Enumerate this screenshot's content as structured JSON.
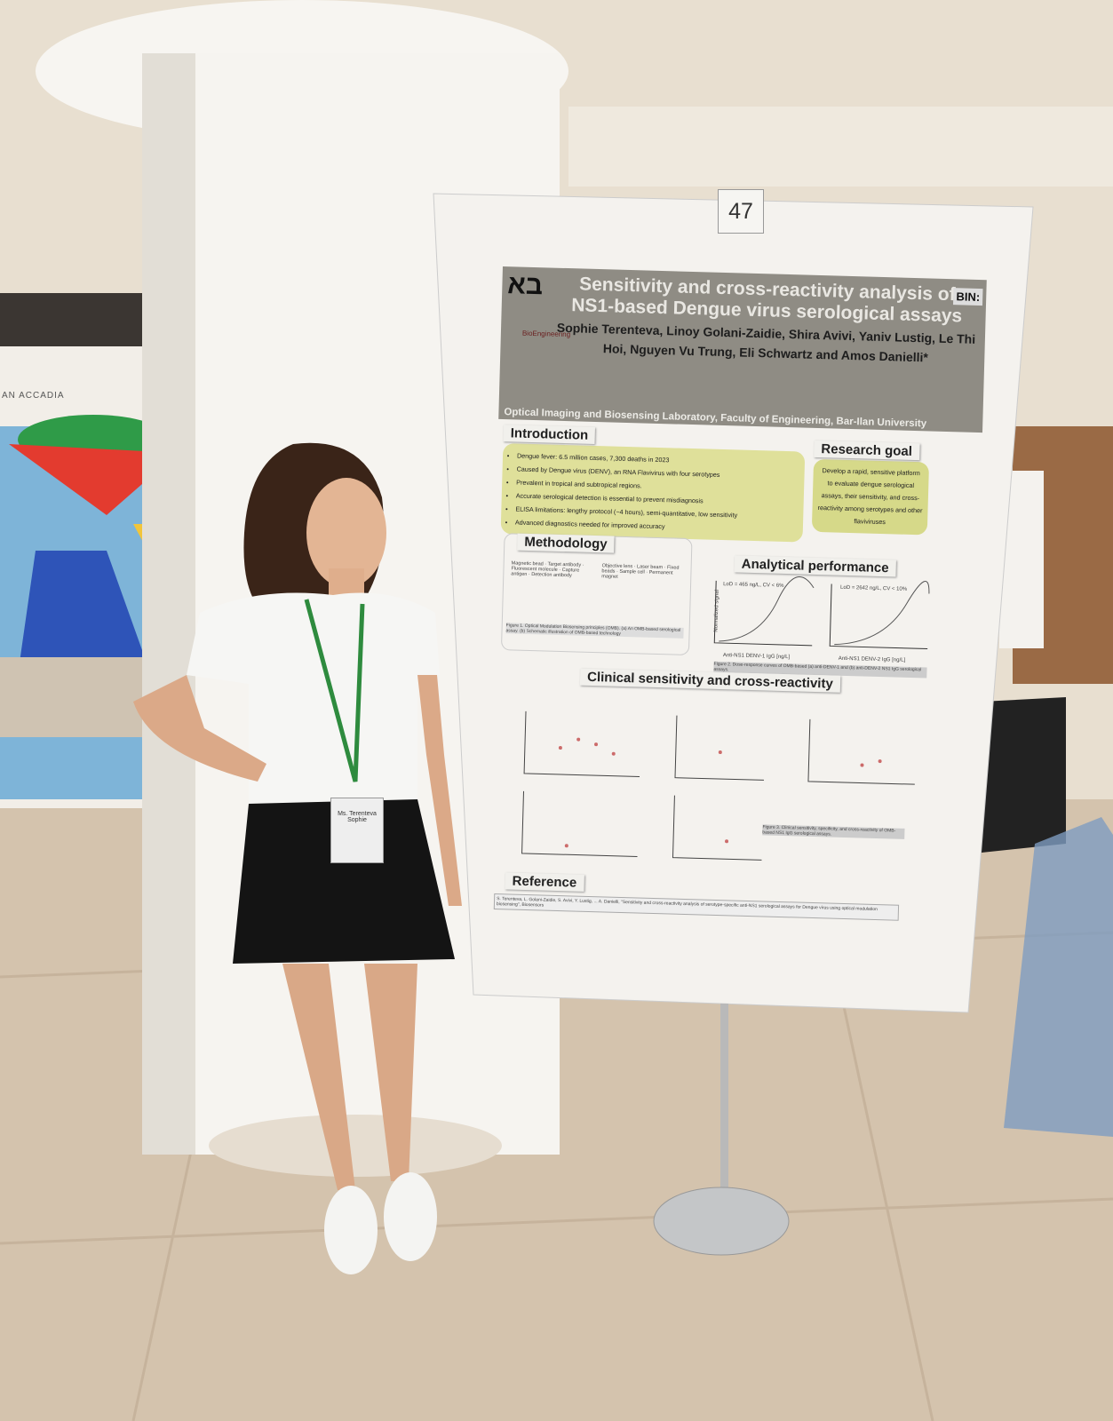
{
  "board_number": "47",
  "hotel_sign": "AN ACCADIA",
  "name_badge": "Ms. Terenteva Sophie",
  "poster": {
    "title": "Sensitivity and cross-reactivity analysis of NS1-based Dengue virus serological assays",
    "authors": "Sophie Terenteva, Linoy Golani-Zaidie, Shira Avivi, Yaniv Lustig, Le Thi Hoi, Nguyen Vu Trung, Eli Schwartz and Amos Danielli*",
    "affiliation": "Optical Imaging and Biosensing Laboratory, Faculty of Engineering, Bar-Ilan University",
    "logos": {
      "left": "בא",
      "right": "BIN:",
      "bio": "BioEngineering"
    },
    "introduction": {
      "title": "Introduction",
      "bullets": [
        "Dengue fever: 6.5 million cases, 7,300 deaths in 2023",
        "Caused by Dengue virus (DENV), an RNA Flavivirus with four serotypes",
        "Prevalent in tropical and subtropical regions.",
        "Accurate serological detection is essential to prevent misdiagnosis",
        "ELISA limitations: lengthy protocol (~4 hours), semi-quantitative, low sensitivity",
        "Advanced diagnostics needed for improved accuracy"
      ]
    },
    "research_goal": {
      "title": "Research goal",
      "text": "Develop a rapid, sensitive platform to evaluate dengue serological assays, their sensitivity, and cross-reactivity among serotypes and other flaviviruses"
    },
    "methodology": {
      "title": "Methodology",
      "labels": [
        "Magnetic bead",
        "Target antibody",
        "Fluorescent molecule",
        "Capture antigen",
        "Detection antibody",
        "Objective lens",
        "Laser beam",
        "Fixed beads",
        "Sample cell",
        "Permanent magnet"
      ],
      "caption": "Figure 1. Optical Modulation Biosensing principles (OMB). (a) An OMB-based serological assay. (b) Schematic illustration of OMB-based technology"
    },
    "analytical": {
      "title": "Analytical performance",
      "a_lod": "LoD = 465 ng/L, CV < 6%",
      "b_lod": "LoD = 2642 ng/L, CV < 10%",
      "a_xlabel": "Anti-NS1 DENV-1 IgG [ng/L]",
      "b_xlabel": "Anti-NS1 DENV-2 IgG [ng/L]",
      "ylabel": "Normalized signal",
      "caption": "Figure 2. Dose-response curves of OMB-based (a) anti-DENV-1 and (b) anti-DENV-2 NS1 IgG serological assays."
    },
    "clinical": {
      "title": "Clinical sensitivity and cross-reactivity",
      "caption": "Figure 3. Clinical sensitivity, specificity, and cross-reactivity of OMB-based NS1 IgG serological assays."
    },
    "reference": {
      "title": "Reference",
      "text": "S. Terenteva, L. Golani-Zaidie, S. Avivi, Y. Lustig, ... A. Danielli, \"Sensitivity and cross-reactivity analysis of serotype-specific anti-NS1 serological assays for Dengue virus using optical modulation biosensing\", Biosensors"
    }
  },
  "colors": {
    "poster_header": "#8f8c84",
    "intro_box": "#dfe09a",
    "wall": "#e6dccb",
    "floor": "#d2c0aa",
    "lanyard": "#2e8b3e"
  }
}
